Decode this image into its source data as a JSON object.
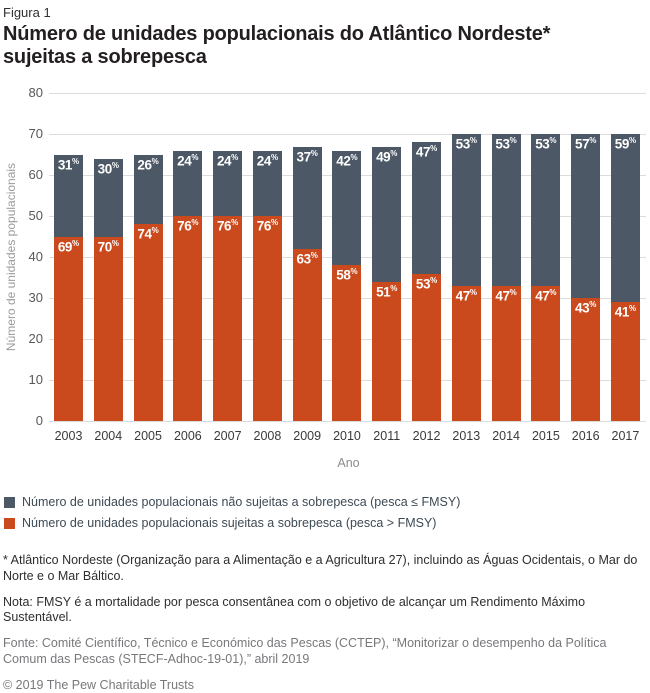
{
  "figure_label": "Figura 1",
  "title": "Número de unidades populacionais do Atlântico Nordeste* sujeitas a sobrepesca",
  "colors": {
    "not_overfished": "#4d5866",
    "overfished": "#cb4a1d",
    "gridline": "#dcdcdc"
  },
  "chart_data": {
    "type": "bar",
    "stacked": true,
    "title": "Número de unidades populacionais do Atlântico Nordeste* sujeitas a sobrepesca",
    "xlabel": "Ano",
    "ylabel": "Número de unidades populacionais",
    "ylim": [
      0,
      80
    ],
    "yticks": [
      0,
      10,
      20,
      30,
      40,
      50,
      60,
      70,
      80
    ],
    "grid": "horizontal",
    "legend_position": "bottom-left",
    "categories": [
      "2003",
      "2004",
      "2005",
      "2006",
      "2007",
      "2008",
      "2009",
      "2010",
      "2011",
      "2012",
      "2013",
      "2014",
      "2015",
      "2016",
      "2017"
    ],
    "series": [
      {
        "name": "Número de unidades populacionais não sujeitas a sobrepesca (pesca ≤ FMSY)",
        "color": "#4d5866",
        "stack_order": "top",
        "values": [
          20,
          19,
          17,
          16,
          16,
          16,
          25,
          28,
          33,
          32,
          37,
          37,
          37,
          40,
          41
        ],
        "percent_labels": [
          31,
          30,
          26,
          24,
          24,
          24,
          37,
          42,
          49,
          47,
          53,
          53,
          53,
          57,
          59
        ]
      },
      {
        "name": "Número de unidades populacionais sujeitas a sobrepesca (pesca > FMSY)",
        "color": "#cb4a1d",
        "stack_order": "bottom",
        "values": [
          45,
          45,
          48,
          50,
          50,
          50,
          42,
          38,
          34,
          36,
          33,
          33,
          33,
          30,
          29
        ],
        "percent_labels": [
          69,
          70,
          74,
          76,
          76,
          76,
          63,
          58,
          51,
          53,
          47,
          47,
          47,
          43,
          41
        ]
      }
    ],
    "totals": [
      65,
      64,
      65,
      66,
      66,
      66,
      67,
      66,
      67,
      68,
      70,
      70,
      70,
      70,
      70
    ]
  },
  "legend": [
    {
      "label": "Número de unidades populacionais não sujeitas a sobrepesca (pesca ≤ FMSY)",
      "color": "#4d5866"
    },
    {
      "label": "Número de unidades populacionais sujeitas a sobrepesca (pesca > FMSY)",
      "color": "#cb4a1d"
    }
  ],
  "footnotes": {
    "asterisk": "* Atlântico Nordeste (Organização para a Alimentação e a Agricultura 27), incluindo as Águas Ocidentais, o Mar do Norte e o Mar Báltico.",
    "nota": "Nota: FMSY é a mortalidade por pesca consentânea com o objetivo de alcançar um Rendimento Máximo Sustentável.",
    "fonte": "Fonte: Comité Científico, Técnico e Económico das Pescas (CCTEP), “Monitorizar o desempenho da Política Comum das Pescas (STECF-Adhoc-19-01),” abril 2019",
    "copyright": "© 2019 The Pew Charitable Trusts"
  }
}
